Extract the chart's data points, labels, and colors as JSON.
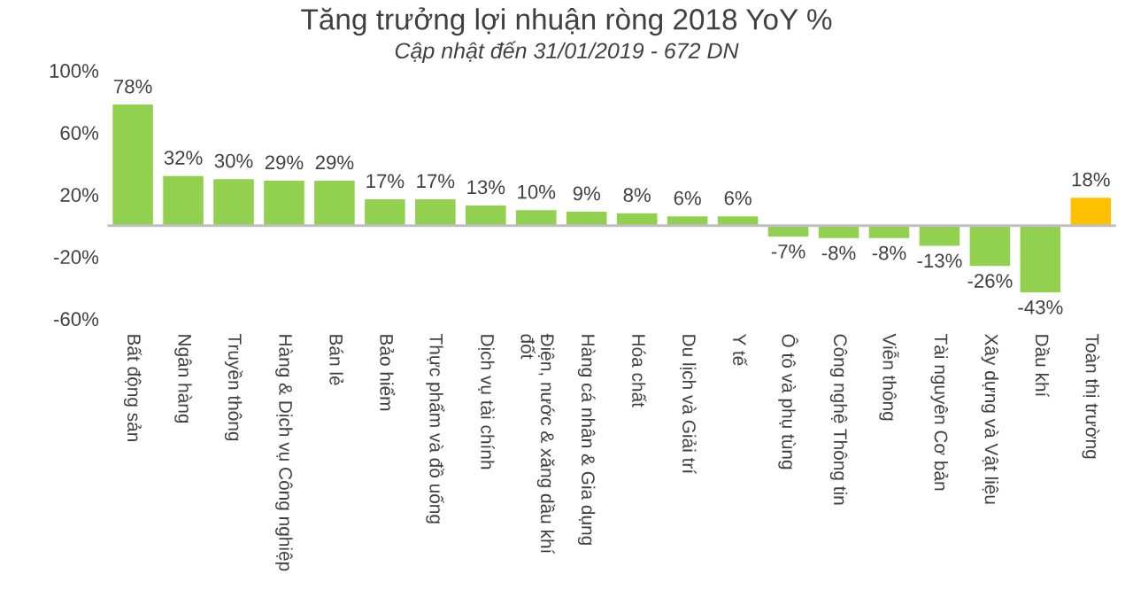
{
  "chart_data": {
    "type": "bar",
    "title": "Tăng trưởng lợi nhuận ròng 2018 YoY %",
    "subtitle": "Cập nhật đến 31/01/2019 - 672 DN",
    "categories": [
      "Bất động sản",
      "Ngân hàng",
      "Truyền thông",
      "Hàng & Dịch vụ Công nghiệp",
      "Bán lẻ",
      "Bảo hiểm",
      "Thực phẩm và đồ uống",
      "Dịch vụ tài chính",
      "Điện, nước & xăng dầu khí\nđốt",
      "Hàng cá nhân & Gia dụng",
      "Hóa chất",
      "Du lịch và Giải trí",
      "Y tế",
      "Ô tô và phụ tùng",
      "Công nghệ Thông tin",
      "Viễn thông",
      "Tài nguyên Cơ bản",
      "Xây dựng và Vật liệu",
      "Dầu khí",
      "Toàn thị trường"
    ],
    "values": [
      78,
      32,
      30,
      29,
      29,
      17,
      17,
      13,
      10,
      9,
      8,
      6,
      6,
      -7,
      -8,
      -8,
      -13,
      -26,
      -43,
      18
    ],
    "colors": [
      "#92d050",
      "#92d050",
      "#92d050",
      "#92d050",
      "#92d050",
      "#92d050",
      "#92d050",
      "#92d050",
      "#92d050",
      "#92d050",
      "#92d050",
      "#92d050",
      "#92d050",
      "#92d050",
      "#92d050",
      "#92d050",
      "#92d050",
      "#92d050",
      "#92d050",
      "#ffc000"
    ],
    "value_labels": [
      "78%",
      "32%",
      "30%",
      "29%",
      "29%",
      "17%",
      "17%",
      "13%",
      "10%",
      "9%",
      "8%",
      "6%",
      "6%",
      "-7%",
      "-8%",
      "-8%",
      "-13%",
      "-26%",
      "-43%",
      "18%"
    ],
    "ylim": [
      -60,
      100
    ],
    "yticks": [
      {
        "value": -60,
        "label": "-60%"
      },
      {
        "value": -20,
        "label": "-20%"
      },
      {
        "value": 20,
        "label": "20%"
      },
      {
        "value": 60,
        "label": "60%"
      },
      {
        "value": 100,
        "label": "100%"
      }
    ],
    "grid": false,
    "legend": false
  }
}
